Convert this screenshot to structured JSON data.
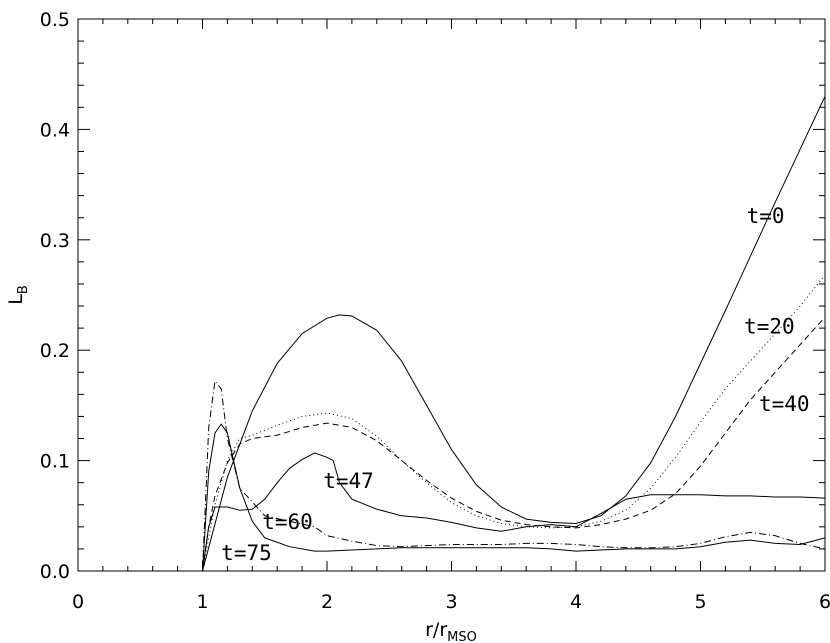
{
  "chart_data": {
    "type": "line",
    "xlabel": "r/r",
    "xlabel_sub": "MSO",
    "ylabel": "L",
    "ylabel_sub": "B",
    "xlim": [
      0,
      6
    ],
    "ylim": [
      0,
      0.5
    ],
    "xticks": [
      0,
      1,
      2,
      3,
      4,
      5,
      6
    ],
    "xtick_labels": [
      "0",
      "1",
      "2",
      "3",
      "4",
      "5",
      "6"
    ],
    "yticks": [
      0.0,
      0.1,
      0.2,
      0.3,
      0.4,
      0.5
    ],
    "ytick_labels": [
      "0.0",
      "0.1",
      "0.2",
      "0.3",
      "0.4",
      "0.5"
    ],
    "grid": false,
    "legend": "none",
    "series": [
      {
        "name": "t=0",
        "dash": "solid",
        "x": [
          1.0,
          1.2,
          1.4,
          1.6,
          1.8,
          2.0,
          2.1,
          2.2,
          2.4,
          2.6,
          2.8,
          3.0,
          3.2,
          3.4,
          3.6,
          3.8,
          4.0,
          4.2,
          4.4,
          4.6,
          4.8,
          5.0,
          5.2,
          5.4,
          5.6,
          5.8,
          6.0
        ],
        "y": [
          0.0,
          0.085,
          0.145,
          0.188,
          0.215,
          0.229,
          0.232,
          0.231,
          0.218,
          0.19,
          0.15,
          0.11,
          0.078,
          0.058,
          0.047,
          0.044,
          0.043,
          0.05,
          0.068,
          0.098,
          0.14,
          0.188,
          0.236,
          0.285,
          0.334,
          0.382,
          0.43
        ]
      },
      {
        "name": "t=20",
        "dash": "dotted",
        "x": [
          1.0,
          1.05,
          1.1,
          1.2,
          1.3,
          1.4,
          1.6,
          1.8,
          2.0,
          2.2,
          2.4,
          2.6,
          2.8,
          3.0,
          3.2,
          3.4,
          3.6,
          3.8,
          4.0,
          4.2,
          4.4,
          4.6,
          4.8,
          5.0,
          5.2,
          5.4,
          5.6,
          5.8,
          6.0
        ],
        "y": [
          0.0,
          0.03,
          0.06,
          0.1,
          0.12,
          0.123,
          0.132,
          0.14,
          0.143,
          0.138,
          0.122,
          0.1,
          0.08,
          0.062,
          0.05,
          0.043,
          0.04,
          0.039,
          0.04,
          0.045,
          0.055,
          0.075,
          0.103,
          0.135,
          0.165,
          0.19,
          0.215,
          0.24,
          0.268
        ]
      },
      {
        "name": "t=40",
        "dash": "dashed",
        "x": [
          1.0,
          1.05,
          1.1,
          1.2,
          1.3,
          1.4,
          1.6,
          1.8,
          2.0,
          2.2,
          2.4,
          2.6,
          2.8,
          3.0,
          3.2,
          3.4,
          3.6,
          3.8,
          4.0,
          4.2,
          4.4,
          4.6,
          4.8,
          5.0,
          5.2,
          5.4,
          5.6,
          5.8,
          6.0
        ],
        "y": [
          0.0,
          0.04,
          0.068,
          0.098,
          0.115,
          0.12,
          0.123,
          0.13,
          0.134,
          0.13,
          0.118,
          0.1,
          0.082,
          0.066,
          0.054,
          0.046,
          0.042,
          0.04,
          0.039,
          0.042,
          0.047,
          0.055,
          0.07,
          0.095,
          0.125,
          0.155,
          0.18,
          0.205,
          0.23
        ]
      },
      {
        "name": "t=47",
        "dash": "solid",
        "x": [
          1.0,
          1.05,
          1.1,
          1.2,
          1.3,
          1.4,
          1.5,
          1.6,
          1.7,
          1.8,
          1.9,
          2.0,
          2.05,
          2.1,
          2.2,
          2.4,
          2.6,
          2.8,
          3.0,
          3.2,
          3.4,
          3.6,
          3.8,
          4.0,
          4.2,
          4.4,
          4.6,
          4.8,
          5.0,
          5.2,
          5.4,
          5.6,
          5.8,
          6.0
        ],
        "y": [
          0.0,
          0.04,
          0.058,
          0.058,
          0.055,
          0.056,
          0.065,
          0.08,
          0.093,
          0.101,
          0.107,
          0.103,
          0.1,
          0.08,
          0.065,
          0.056,
          0.05,
          0.048,
          0.044,
          0.039,
          0.036,
          0.04,
          0.042,
          0.04,
          0.052,
          0.065,
          0.069,
          0.069,
          0.069,
          0.068,
          0.068,
          0.067,
          0.067,
          0.066
        ]
      },
      {
        "name": "t=60",
        "dash": "dashdot",
        "x": [
          1.0,
          1.05,
          1.1,
          1.15,
          1.2,
          1.3,
          1.5,
          1.7,
          1.9,
          2.0,
          2.2,
          2.4,
          2.6,
          2.8,
          3.0,
          3.2,
          3.4,
          3.6,
          3.8,
          4.0,
          4.2,
          4.4,
          4.6,
          4.8,
          5.0,
          5.2,
          5.4,
          5.6,
          5.8,
          6.0
        ],
        "y": [
          0.0,
          0.13,
          0.172,
          0.165,
          0.12,
          0.075,
          0.05,
          0.045,
          0.04,
          0.032,
          0.027,
          0.023,
          0.022,
          0.023,
          0.024,
          0.024,
          0.024,
          0.025,
          0.025,
          0.024,
          0.022,
          0.021,
          0.021,
          0.022,
          0.025,
          0.031,
          0.035,
          0.032,
          0.025,
          0.02
        ]
      },
      {
        "name": "t=75",
        "dash": "solid",
        "x": [
          1.0,
          1.05,
          1.1,
          1.15,
          1.2,
          1.25,
          1.3,
          1.4,
          1.5,
          1.7,
          1.9,
          2.0,
          2.2,
          2.4,
          2.6,
          2.8,
          3.0,
          3.2,
          3.4,
          3.6,
          3.8,
          4.0,
          4.2,
          4.4,
          4.6,
          4.8,
          5.0,
          5.2,
          5.4,
          5.6,
          5.8,
          6.0
        ],
        "y": [
          0.0,
          0.09,
          0.125,
          0.133,
          0.125,
          0.1,
          0.075,
          0.045,
          0.03,
          0.022,
          0.018,
          0.018,
          0.019,
          0.02,
          0.021,
          0.021,
          0.021,
          0.021,
          0.021,
          0.021,
          0.02,
          0.018,
          0.019,
          0.02,
          0.02,
          0.02,
          0.022,
          0.026,
          0.028,
          0.025,
          0.024,
          0.03
        ]
      }
    ],
    "annotations": [
      {
        "text": "t=0",
        "x": 5.37,
        "y": 0.315
      },
      {
        "text": "t=20",
        "x": 5.35,
        "y": 0.215
      },
      {
        "text": "t=40",
        "x": 5.47,
        "y": 0.145
      },
      {
        "text": "t=47",
        "x": 1.97,
        "y": 0.075
      },
      {
        "text": "t=60",
        "x": 1.48,
        "y": 0.038
      },
      {
        "text": "t=75",
        "x": 1.15,
        "y": 0.01
      }
    ]
  }
}
